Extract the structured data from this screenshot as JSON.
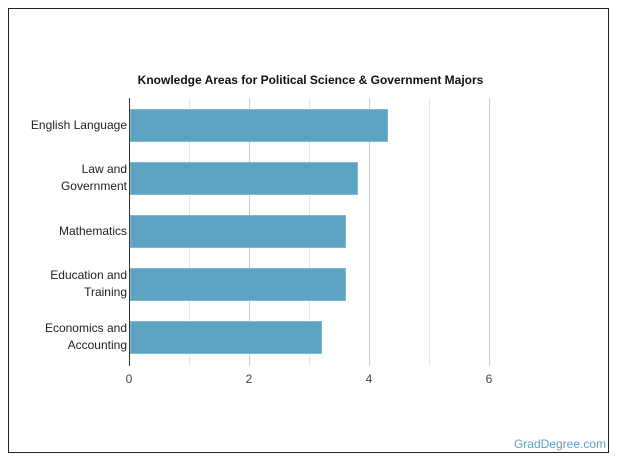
{
  "chart_data": {
    "type": "bar",
    "orientation": "horizontal",
    "title": "Knowledge Areas for Political Science & Government Majors",
    "categories": [
      "English Language",
      "Law and\nGovernment",
      "Mathematics",
      "Education and\nTraining",
      "Economics and\nAccounting"
    ],
    "values": [
      4.3,
      3.8,
      3.6,
      3.6,
      3.2
    ],
    "xlabel": "",
    "ylabel": "",
    "xlim": [
      0,
      6
    ],
    "xticks": [
      "0",
      "2",
      "4",
      "6"
    ],
    "grid": true,
    "bar_color": "#5ba3c0"
  },
  "footer": {
    "brand": "GradDegree.com"
  }
}
